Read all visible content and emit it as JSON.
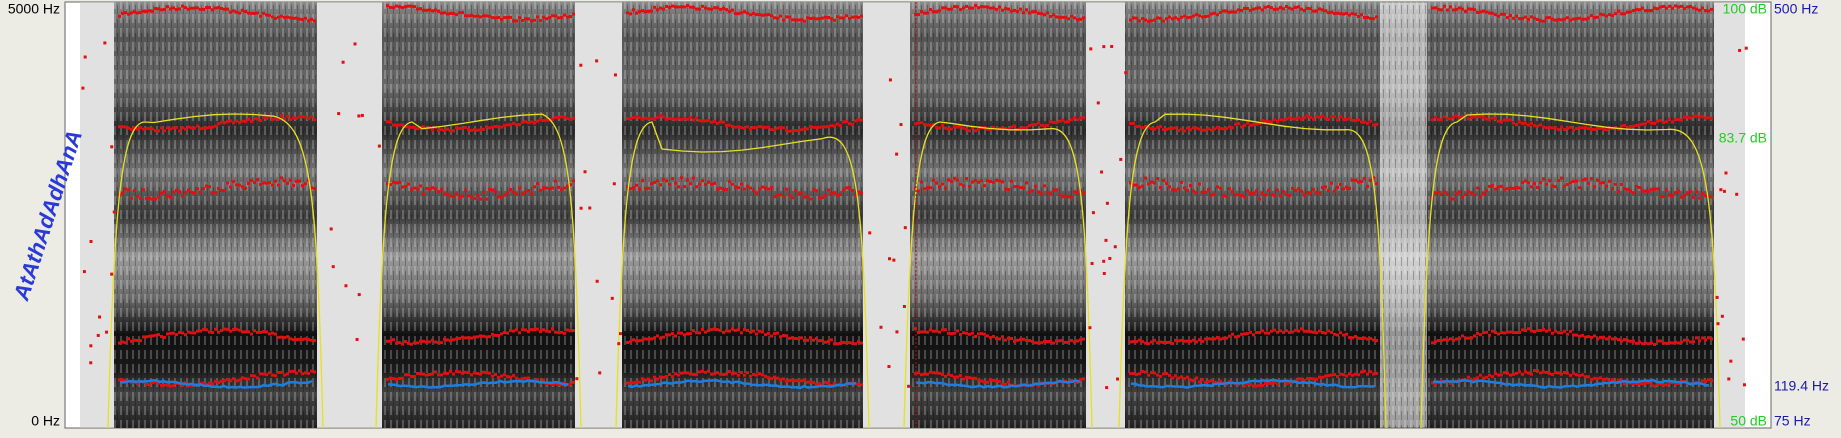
{
  "window": {
    "left_axis": {
      "top": "5000 Hz",
      "bottom": "0 Hz"
    },
    "right_axis": {
      "top_db": "100 dB",
      "top_hz": "500 Hz",
      "mid_db": "83.7 dB",
      "mid_hz": "119.4 Hz",
      "bottom_db": "50 dB",
      "bottom_hz": "75 Hz"
    },
    "tier_text": "AtAthAdAdhAnA"
  }
}
